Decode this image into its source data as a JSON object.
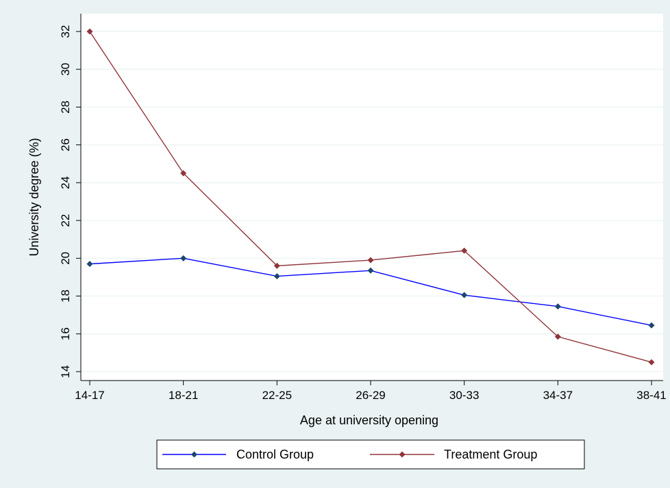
{
  "chart_data": {
    "type": "line",
    "title": "",
    "xlabel": "Age at university opening",
    "ylabel": "University degree (%)",
    "categories": [
      "14-17",
      "18-21",
      "22-25",
      "26-29",
      "30-33",
      "34-37",
      "38-41"
    ],
    "ylim": [
      14,
      32
    ],
    "yticks": [
      14,
      16,
      18,
      20,
      22,
      24,
      26,
      28,
      30,
      32
    ],
    "grid": true,
    "legend_position": "bottom",
    "series": [
      {
        "name": "Control Group",
        "color": "#0000ff",
        "marker_color": "#1a476f",
        "values": [
          19.7,
          20.0,
          19.05,
          19.35,
          18.05,
          17.45,
          16.45
        ]
      },
      {
        "name": "Treatment Group",
        "color": "#90353b",
        "marker_color": "#90353b",
        "values": [
          32.0,
          24.5,
          19.6,
          19.9,
          20.4,
          15.85,
          14.5
        ]
      }
    ],
    "colors": {
      "outer_background": "#eaf2f3",
      "plot_background": "#ffffff",
      "grid": "#eaf2f3"
    }
  }
}
